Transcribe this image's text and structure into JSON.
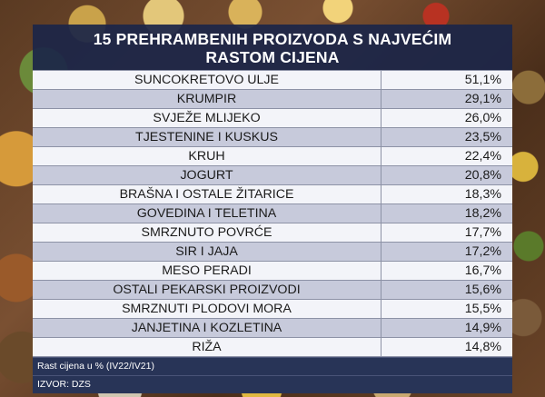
{
  "chart_data": {
    "type": "table",
    "title_lines": [
      "15 PREHRAMBENIH PROIZVODA S NAJVEĆIM",
      "RASTOM CIJENA"
    ],
    "rows": [
      {
        "label": "SUNCOKRETOVO ULJE",
        "value": 51.1,
        "display": "51,1%"
      },
      {
        "label": "KRUMPIR",
        "value": 29.1,
        "display": "29,1%"
      },
      {
        "label": "SVJEŽE MLIJEKO",
        "value": 26.0,
        "display": "26,0%"
      },
      {
        "label": "TJESTENINE I KUSKUS",
        "value": 23.5,
        "display": "23,5%"
      },
      {
        "label": "KRUH",
        "value": 22.4,
        "display": "22,4%"
      },
      {
        "label": "JOGURT",
        "value": 20.8,
        "display": "20,8%"
      },
      {
        "label": "BRAŠNA I OSTALE ŽITARICE",
        "value": 18.3,
        "display": "18,3%"
      },
      {
        "label": "GOVEDINA I TELETINA",
        "value": 18.2,
        "display": "18,2%"
      },
      {
        "label": "SMRZNUTO POVRĆE",
        "value": 17.7,
        "display": "17,7%"
      },
      {
        "label": "SIR I JAJA",
        "value": 17.2,
        "display": "17,2%"
      },
      {
        "label": "MESO PERADI",
        "value": 16.7,
        "display": "16,7%"
      },
      {
        "label": "OSTALI PEKARSKI PROIZVODI",
        "value": 15.6,
        "display": "15,6%"
      },
      {
        "label": "SMRZNUTI PLODOVI MORA",
        "value": 15.5,
        "display": "15,5%"
      },
      {
        "label": "JANJETINA I KOZLETINA",
        "value": 14.9,
        "display": "14,9%"
      },
      {
        "label": "RIŽA",
        "value": 14.8,
        "display": "14,8%"
      }
    ],
    "note": "Rast cijena u % (IV22/IV21)",
    "source": "IZVOR: DZS"
  },
  "colors": {
    "panel": "#1c2648",
    "row_light": "#f3f4f9",
    "row_dark": "#c7cadb",
    "footer": "#283457"
  }
}
